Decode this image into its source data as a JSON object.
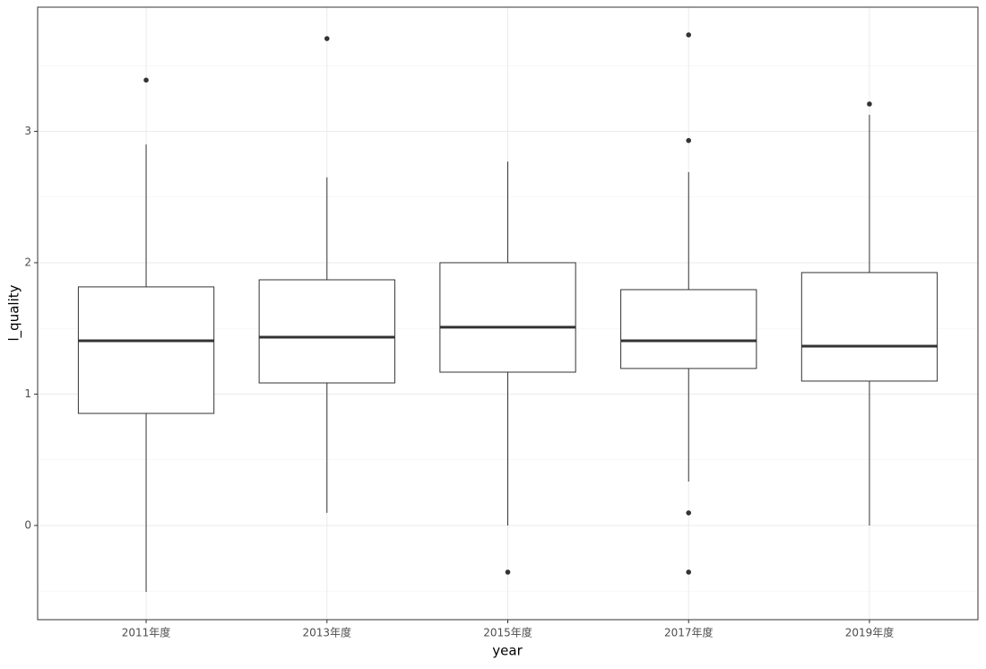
{
  "chart_data": {
    "type": "boxplot",
    "x_label": "year",
    "y_label": "l_quality",
    "categories": [
      "2011年度",
      "2013年度",
      "2015年度",
      "2017年度",
      "2019年度"
    ],
    "boxes": [
      {
        "min": -0.505,
        "q1": 0.853,
        "median": 1.406,
        "q3": 1.816,
        "max": 2.9,
        "outliers": [
          3.39
        ]
      },
      {
        "min": 0.096,
        "q1": 1.085,
        "median": 1.433,
        "q3": 1.87,
        "max": 2.65,
        "outliers": [
          3.706
        ]
      },
      {
        "min": 0,
        "q1": 1.167,
        "median": 1.509,
        "q3": 2.0,
        "max": 2.77,
        "outliers": [
          -0.355
        ]
      },
      {
        "min": 0.334,
        "q1": 1.195,
        "median": 1.406,
        "q3": 1.795,
        "max": 2.69,
        "outliers": [
          3.734,
          2.93,
          0.096,
          -0.355
        ]
      },
      {
        "min": 0,
        "q1": 1.099,
        "median": 1.365,
        "q3": 1.925,
        "max": 3.126,
        "outliers": [
          3.208
        ]
      }
    ],
    "ylim": [
      -0.717,
      3.945
    ],
    "yticks": [
      0,
      1,
      2,
      3
    ],
    "minor_yticks": [
      -0.5,
      0.5,
      1.5,
      2.5,
      3.5
    ],
    "grid": true,
    "color": "#333333",
    "fill": "#ffffff"
  }
}
